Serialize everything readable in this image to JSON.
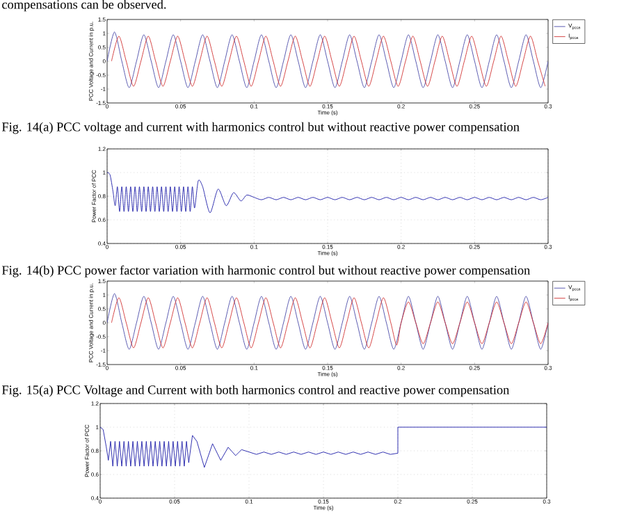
{
  "chart_data": [
    {
      "type": "line",
      "xlabel": "Time (s)",
      "ylabel": "PCC Voltage and Current in p.u.",
      "xlim": [
        0,
        0.3
      ],
      "ylim": [
        -1.5,
        1.5
      ],
      "xticks": [
        0,
        0.05,
        0.1,
        0.15,
        0.2,
        0.25,
        0.3
      ],
      "yticks": [
        -1.5,
        -1,
        -0.5,
        0,
        0.5,
        1,
        1.5
      ],
      "legend": "top right",
      "annotations": [
        "compensations can be observed.",
        "Fig. 14(a) PCC voltage and current with harmonics control but without reactive power compensation"
      ],
      "series": [
        {
          "name": "V$_{pcca}$",
          "color": "#4a4aa8",
          "x": [
            0,
            0.005,
            0.01,
            0.015,
            0.02,
            0.025,
            0.03,
            0.035,
            0.04,
            0.045,
            0.05,
            0.055,
            0.06,
            0.065,
            0.07,
            0.075,
            0.08,
            0.085,
            0.09,
            0.095,
            0.1,
            0.105,
            0.11,
            0.115,
            0.12,
            0.125,
            0.13,
            0.135,
            0.14,
            0.145,
            0.15,
            0.155,
            0.16,
            0.165,
            0.17,
            0.175,
            0.18,
            0.185,
            0.19,
            0.195,
            0.2,
            0.205,
            0.21,
            0.215,
            0.22,
            0.225,
            0.23,
            0.235,
            0.24,
            0.245,
            0.25,
            0.255,
            0.26,
            0.265,
            0.27,
            0.275,
            0.28,
            0.285,
            0.29,
            0.295,
            0.3
          ],
          "values": [
            0,
            1.05,
            0,
            -0.95,
            0,
            0.95,
            0,
            -0.95,
            0,
            0.95,
            0,
            -0.95,
            0,
            0.95,
            0,
            -0.95,
            0,
            0.95,
            0,
            -0.95,
            0,
            0.95,
            0,
            -0.95,
            0,
            0.95,
            0,
            -0.95,
            0,
            0.95,
            0,
            -0.95,
            0,
            0.95,
            0,
            -0.95,
            0,
            0.95,
            0,
            -0.95,
            0,
            0.95,
            0,
            -0.95,
            0,
            0.95,
            0,
            -0.95,
            0,
            0.95,
            0,
            -0.95,
            0,
            0.95,
            0,
            -0.95,
            0,
            0.95,
            0,
            -0.95,
            0
          ]
        },
        {
          "name": "I$_{pcca}$",
          "color": "#d03030",
          "x": [
            0.003,
            0.008,
            0.013,
            0.018,
            0.023,
            0.028,
            0.033,
            0.038,
            0.043,
            0.048,
            0.053,
            0.058,
            0.063,
            0.068,
            0.073,
            0.078,
            0.083,
            0.088,
            0.093,
            0.098,
            0.103,
            0.108,
            0.113,
            0.118,
            0.123,
            0.128,
            0.133,
            0.138,
            0.143,
            0.148,
            0.153,
            0.158,
            0.163,
            0.168,
            0.173,
            0.178,
            0.183,
            0.188,
            0.193,
            0.198,
            0.203,
            0.208,
            0.213,
            0.218,
            0.223,
            0.228,
            0.233,
            0.238,
            0.243,
            0.248,
            0.253,
            0.258,
            0.263,
            0.268,
            0.273,
            0.278,
            0.283,
            0.288,
            0.293,
            0.298
          ],
          "values": [
            0,
            0.9,
            0,
            -0.9,
            0,
            0.9,
            0,
            -0.9,
            0,
            0.9,
            0,
            -0.9,
            0,
            0.9,
            0,
            -0.9,
            0,
            0.9,
            0,
            -0.9,
            0,
            0.9,
            0,
            -0.9,
            0,
            0.9,
            0,
            -0.9,
            0,
            0.9,
            0,
            -0.9,
            0,
            0.9,
            0,
            -0.9,
            0,
            0.9,
            0,
            -0.9,
            0,
            0.9,
            0,
            -0.9,
            0,
            0.9,
            0,
            -0.9,
            0,
            0.9,
            0,
            -0.9,
            0,
            0.9,
            0,
            -0.9,
            0,
            0.9,
            0,
            -0.9
          ]
        }
      ]
    },
    {
      "type": "line",
      "xlabel": "Time (s)",
      "ylabel": "Power Factor of PCC",
      "xlim": [
        0,
        0.3
      ],
      "ylim": [
        0.4,
        1.2
      ],
      "xticks": [
        0,
        0.05,
        0.1,
        0.15,
        0.2,
        0.25,
        0.3
      ],
      "yticks": [
        0.4,
        0.6,
        0.8,
        1,
        1.2
      ],
      "grid": true,
      "annotations": [
        "Fig. 14(b) PCC power factor variation with harmonic control but without reactive power compensation"
      ],
      "series": [
        {
          "color": "#1c1ca8",
          "x": [
            0,
            0.002,
            0.004,
            0.0055,
            0.007,
            0.0085,
            0.01,
            0.0115,
            0.013,
            0.0145,
            0.016,
            0.0175,
            0.019,
            0.0205,
            0.022,
            0.0235,
            0.025,
            0.0265,
            0.028,
            0.0295,
            0.031,
            0.0325,
            0.034,
            0.0355,
            0.037,
            0.0385,
            0.04,
            0.0415,
            0.043,
            0.0445,
            0.046,
            0.0475,
            0.049,
            0.0505,
            0.052,
            0.0535,
            0.055,
            0.0565,
            0.058,
            0.0595,
            0.062,
            0.065,
            0.07,
            0.0755,
            0.081,
            0.086,
            0.091,
            0.095,
            0.1,
            0.105,
            0.11,
            0.115,
            0.12,
            0.125,
            0.13,
            0.135,
            0.14,
            0.145,
            0.15,
            0.155,
            0.16,
            0.165,
            0.17,
            0.175,
            0.18,
            0.185,
            0.19,
            0.195,
            0.2,
            0.205,
            0.21,
            0.215,
            0.22,
            0.225,
            0.23,
            0.235,
            0.24,
            0.245,
            0.25,
            0.255,
            0.26,
            0.265,
            0.27,
            0.275,
            0.28,
            0.285,
            0.29,
            0.295,
            0.3
          ],
          "values": [
            1,
            0.98,
            0.84,
            0.72,
            0.88,
            0.67,
            0.88,
            0.67,
            0.88,
            0.67,
            0.88,
            0.67,
            0.88,
            0.67,
            0.88,
            0.67,
            0.88,
            0.67,
            0.88,
            0.67,
            0.88,
            0.67,
            0.88,
            0.67,
            0.88,
            0.67,
            0.88,
            0.67,
            0.88,
            0.67,
            0.88,
            0.67,
            0.88,
            0.67,
            0.88,
            0.67,
            0.88,
            0.67,
            0.88,
            0.7,
            0.93,
            0.88,
            0.66,
            0.86,
            0.72,
            0.83,
            0.76,
            0.81,
            0.79,
            0.77,
            0.79,
            0.77,
            0.79,
            0.77,
            0.79,
            0.77,
            0.79,
            0.77,
            0.79,
            0.77,
            0.79,
            0.77,
            0.79,
            0.77,
            0.79,
            0.77,
            0.79,
            0.77,
            0.79,
            0.77,
            0.79,
            0.77,
            0.79,
            0.77,
            0.79,
            0.77,
            0.79,
            0.77,
            0.79,
            0.77,
            0.79,
            0.77,
            0.79,
            0.77,
            0.79,
            0.77,
            0.79,
            0.77,
            0.79
          ]
        }
      ]
    },
    {
      "type": "line",
      "xlabel": "Time (s)",
      "ylabel": "PCC Voltage and Current in p.u.",
      "xlim": [
        0,
        0.3
      ],
      "ylim": [
        -1.5,
        1.5
      ],
      "xticks": [
        0,
        0.05,
        0.1,
        0.15,
        0.2,
        0.25,
        0.3
      ],
      "yticks": [
        -1.5,
        -1,
        -0.5,
        0,
        0.5,
        1,
        1.5
      ],
      "legend": "top right",
      "annotations": [
        "Fig. 15(a) PCC Voltage and Current with both harmonics control and reactive power compensation"
      ],
      "series": [
        {
          "name": "V$_{pcca}$",
          "color": "#4a4aa8",
          "x": [
            0,
            0.005,
            0.01,
            0.015,
            0.02,
            0.025,
            0.03,
            0.035,
            0.04,
            0.045,
            0.05,
            0.055,
            0.06,
            0.065,
            0.07,
            0.075,
            0.08,
            0.085,
            0.09,
            0.095,
            0.1,
            0.105,
            0.11,
            0.115,
            0.12,
            0.125,
            0.13,
            0.135,
            0.14,
            0.145,
            0.15,
            0.155,
            0.16,
            0.165,
            0.17,
            0.175,
            0.18,
            0.185,
            0.19,
            0.195,
            0.2,
            0.205,
            0.21,
            0.215,
            0.22,
            0.225,
            0.23,
            0.235,
            0.24,
            0.245,
            0.25,
            0.255,
            0.26,
            0.265,
            0.27,
            0.275,
            0.28,
            0.285,
            0.29,
            0.295,
            0.3
          ],
          "values": [
            0,
            1.05,
            0,
            -0.95,
            0,
            0.95,
            0,
            -0.95,
            0,
            0.95,
            0,
            -0.95,
            0,
            0.95,
            0,
            -0.95,
            0,
            0.95,
            0,
            -0.95,
            0,
            0.95,
            0,
            -0.95,
            0,
            0.95,
            0,
            -0.95,
            0,
            0.95,
            0,
            -0.95,
            0,
            0.95,
            0,
            -0.95,
            0,
            0.95,
            0,
            -0.95,
            0,
            0.95,
            0,
            -0.95,
            0,
            0.95,
            0,
            -0.95,
            0,
            0.95,
            0,
            -0.95,
            0,
            0.95,
            0,
            -0.95,
            0,
            0.95,
            0,
            -0.95,
            0
          ]
        },
        {
          "name": "I$_{pcca}$",
          "color": "#d03030",
          "x": [
            0.003,
            0.008,
            0.013,
            0.018,
            0.023,
            0.028,
            0.033,
            0.038,
            0.043,
            0.048,
            0.053,
            0.058,
            0.063,
            0.068,
            0.073,
            0.078,
            0.083,
            0.088,
            0.093,
            0.098,
            0.103,
            0.108,
            0.113,
            0.118,
            0.123,
            0.128,
            0.133,
            0.138,
            0.143,
            0.148,
            0.153,
            0.158,
            0.163,
            0.168,
            0.173,
            0.178,
            0.183,
            0.188,
            0.193,
            0.197,
            0.2,
            0.205,
            0.21,
            0.215,
            0.22,
            0.225,
            0.23,
            0.235,
            0.24,
            0.245,
            0.25,
            0.255,
            0.26,
            0.265,
            0.27,
            0.275,
            0.28,
            0.285,
            0.29,
            0.295,
            0.3
          ],
          "values": [
            0,
            0.9,
            0,
            -0.9,
            0,
            0.9,
            0,
            -0.9,
            0,
            0.9,
            0,
            -0.9,
            0,
            0.9,
            0,
            -0.9,
            0,
            0.9,
            0,
            -0.9,
            0,
            0.9,
            0,
            -0.9,
            0,
            0.9,
            0,
            -0.9,
            0,
            0.9,
            0,
            -0.9,
            0,
            0.9,
            0,
            -0.9,
            0,
            0.9,
            0,
            -0.8,
            0,
            0.75,
            0,
            -0.75,
            0,
            0.75,
            0,
            -0.75,
            0,
            0.75,
            0,
            -0.75,
            0,
            0.75,
            0,
            -0.75,
            0,
            0.75,
            0,
            -0.75,
            0
          ]
        }
      ]
    },
    {
      "type": "line",
      "xlabel": "Time (s)",
      "ylabel": "Power Factor of PCC",
      "xlim": [
        0,
        0.3
      ],
      "ylim": [
        0.4,
        1.2
      ],
      "xticks": [
        0,
        0.05,
        0.1,
        0.15,
        0.2,
        0.25,
        0.3
      ],
      "yticks": [
        0.4,
        0.6,
        0.8,
        1,
        1.2
      ],
      "grid": true,
      "series": [
        {
          "color": "#1c1ca8",
          "x": [
            0,
            0.002,
            0.004,
            0.0055,
            0.007,
            0.0085,
            0.01,
            0.0115,
            0.013,
            0.0145,
            0.016,
            0.0175,
            0.019,
            0.0205,
            0.022,
            0.0235,
            0.025,
            0.0265,
            0.028,
            0.0295,
            0.031,
            0.0325,
            0.034,
            0.0355,
            0.037,
            0.0385,
            0.04,
            0.0415,
            0.043,
            0.0445,
            0.046,
            0.0475,
            0.049,
            0.0505,
            0.052,
            0.0535,
            0.055,
            0.0565,
            0.058,
            0.0595,
            0.062,
            0.065,
            0.07,
            0.0755,
            0.081,
            0.086,
            0.091,
            0.095,
            0.1,
            0.105,
            0.11,
            0.115,
            0.12,
            0.125,
            0.13,
            0.135,
            0.14,
            0.145,
            0.15,
            0.155,
            0.16,
            0.165,
            0.17,
            0.175,
            0.18,
            0.185,
            0.19,
            0.195,
            0.2,
            0.2,
            0.3
          ],
          "values": [
            1,
            0.98,
            0.84,
            0.72,
            0.88,
            0.67,
            0.88,
            0.67,
            0.88,
            0.67,
            0.88,
            0.67,
            0.88,
            0.67,
            0.88,
            0.67,
            0.88,
            0.67,
            0.88,
            0.67,
            0.88,
            0.67,
            0.88,
            0.67,
            0.88,
            0.67,
            0.88,
            0.67,
            0.88,
            0.67,
            0.88,
            0.67,
            0.88,
            0.67,
            0.88,
            0.67,
            0.88,
            0.67,
            0.88,
            0.7,
            0.93,
            0.88,
            0.66,
            0.86,
            0.72,
            0.83,
            0.76,
            0.81,
            0.79,
            0.77,
            0.79,
            0.77,
            0.79,
            0.77,
            0.79,
            0.77,
            0.79,
            0.77,
            0.79,
            0.77,
            0.79,
            0.77,
            0.79,
            0.77,
            0.79,
            0.77,
            0.79,
            0.77,
            0.78,
            1,
            1
          ]
        }
      ]
    }
  ]
}
